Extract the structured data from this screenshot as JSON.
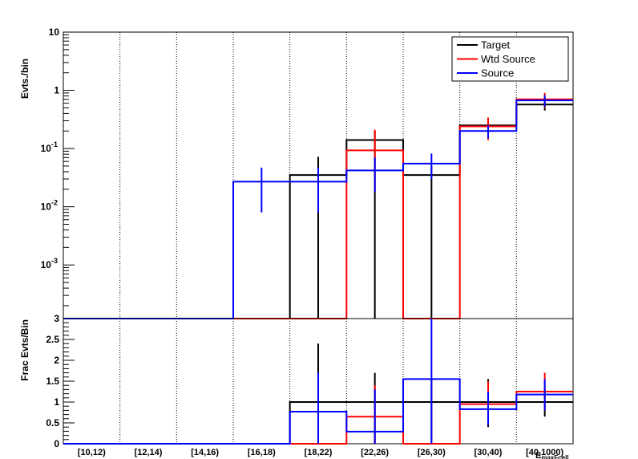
{
  "chart_data": [
    {
      "panel": "upper",
      "type": "histogram",
      "ylabel": "Evts./bin",
      "yscale": "log",
      "ylim": [
        0.00012,
        10
      ],
      "yticks": [
        {
          "value": 10,
          "base": "10",
          "exp": ""
        },
        {
          "value": 1,
          "base": "1",
          "exp": ""
        },
        {
          "value": 0.1,
          "base": "10",
          "exp": "-1"
        },
        {
          "value": 0.01,
          "base": "10",
          "exp": "-2"
        },
        {
          "value": 0.001,
          "base": "10",
          "exp": "-3"
        }
      ],
      "categories": [
        "[10,12)",
        "[12,14)",
        "[14,16)",
        "[16,18)",
        "[18,22)",
        "[22,26)",
        "[26,30)",
        "[30,40)",
        "[40,1000)"
      ],
      "xlabel": "E_maxFcell",
      "xlabel_main": "E",
      "xlabel_sub": "maxFcell",
      "legend": {
        "position": "top-right",
        "entries": [
          "Target",
          "Wtd Source",
          "Source"
        ]
      },
      "series": [
        {
          "name": "Target",
          "color": "#000000",
          "values": [
            0,
            0,
            0,
            0,
            0.035,
            0.14,
            0.035,
            0.25,
            0.57
          ],
          "errors": [
            null,
            null,
            null,
            null,
            [
              0.0001,
              0.072
            ],
            [
              0.00012,
              0.2
            ],
            [
              0.0001,
              0.05
            ],
            [
              0.2,
              0.3
            ],
            [
              0.45,
              0.7
            ]
          ]
        },
        {
          "name": "Wtd Source",
          "color": "#ff0000",
          "values": [
            0,
            0,
            0,
            0,
            0,
            0.093,
            0,
            0.24,
            0.7
          ],
          "errors": [
            null,
            null,
            null,
            null,
            null,
            [
              0.018,
              0.21
            ],
            null,
            [
              0.14,
              0.34
            ],
            [
              0.5,
              0.9
            ]
          ]
        },
        {
          "name": "Source",
          "color": "#0000ff",
          "values": [
            0,
            0,
            0,
            0.027,
            0.027,
            0.042,
            0.055,
            0.2,
            0.67
          ],
          "errors": [
            null,
            null,
            null,
            [
              0.008,
              0.047
            ],
            [
              0.008,
              0.047
            ],
            [
              0.018,
              0.07
            ],
            [
              0.03,
              0.082
            ],
            [
              0.15,
              0.25
            ],
            [
              0.52,
              0.82
            ]
          ]
        }
      ]
    },
    {
      "panel": "lower",
      "type": "histogram",
      "ylabel": "Frac Evts/Bin",
      "ylim": [
        0,
        3
      ],
      "yticks": [
        0,
        0.5,
        1,
        1.5,
        2,
        2.5,
        3
      ],
      "ytick_labels": [
        "0",
        "0.5",
        "1",
        "1.5",
        "2",
        "2.5",
        "3"
      ],
      "categories": [
        "[10,12)",
        "[12,14)",
        "[14,16)",
        "[16,18)",
        "[18,22)",
        "[22,26)",
        "[26,30)",
        "[30,40)",
        "[40,1000)"
      ],
      "series": [
        {
          "name": "Target",
          "color": "#000000",
          "values": [
            0,
            0,
            0,
            0,
            1,
            1,
            1,
            1,
            1
          ],
          "errors": [
            null,
            null,
            null,
            null,
            [
              0,
              2.4
            ],
            [
              0,
              1.7
            ],
            [
              0,
              1.55
            ],
            [
              0.4,
              1.55
            ],
            [
              0.65,
              1.35
            ]
          ]
        },
        {
          "name": "Wtd Source",
          "color": "#ff0000",
          "values": [
            0,
            0,
            0,
            0,
            0,
            0.65,
            0,
            0.95,
            1.25
          ],
          "errors": [
            null,
            null,
            null,
            null,
            null,
            [
              0,
              1.4
            ],
            null,
            [
              0.55,
              1.5
            ],
            [
              0.8,
              1.7
            ]
          ]
        },
        {
          "name": "Source",
          "color": "#0000ff",
          "values": [
            0,
            0,
            0,
            0,
            0.77,
            0.29,
            1.55,
            0.83,
            1.18
          ],
          "errors": [
            null,
            null,
            null,
            null,
            [
              0,
              1.7
            ],
            [
              0,
              1.3
            ],
            [
              0,
              3.0
            ],
            [
              0.45,
              1.25
            ],
            [
              0.8,
              1.55
            ]
          ]
        }
      ]
    }
  ]
}
